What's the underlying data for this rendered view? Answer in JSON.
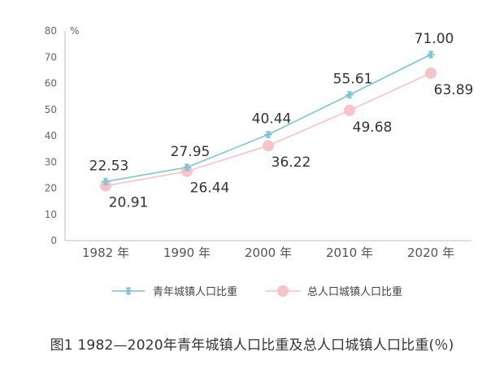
{
  "chart_data": {
    "type": "line",
    "categories": [
      "1982 年",
      "1990 年",
      "2000 年",
      "2010 年",
      "2020 年"
    ],
    "series": [
      {
        "name": "青年城镇人口比重",
        "values": [
          22.53,
          27.95,
          40.44,
          55.61,
          71.0
        ],
        "labels": [
          "22.53",
          "27.95",
          "40.44",
          "55.61",
          "71.00"
        ],
        "color": "#7cc3d4",
        "marker": "asterisk"
      },
      {
        "name": "总人口城镇人口比重",
        "values": [
          20.91,
          26.44,
          36.22,
          49.68,
          63.89
        ],
        "labels": [
          "20.91",
          "26.44",
          "36.22",
          "49.68",
          "63.89"
        ],
        "color": "#f7c3cb",
        "marker": "circle"
      }
    ],
    "ylim": [
      0,
      80
    ],
    "yticks": [
      "0",
      "10",
      "20",
      "30",
      "40",
      "50",
      "60",
      "70",
      "80"
    ],
    "yunit": "%",
    "legend_position": "bottom",
    "grid": false
  },
  "caption": "图1 1982—2020年青年城镇人口比重及总人口城镇人口比重(％)"
}
